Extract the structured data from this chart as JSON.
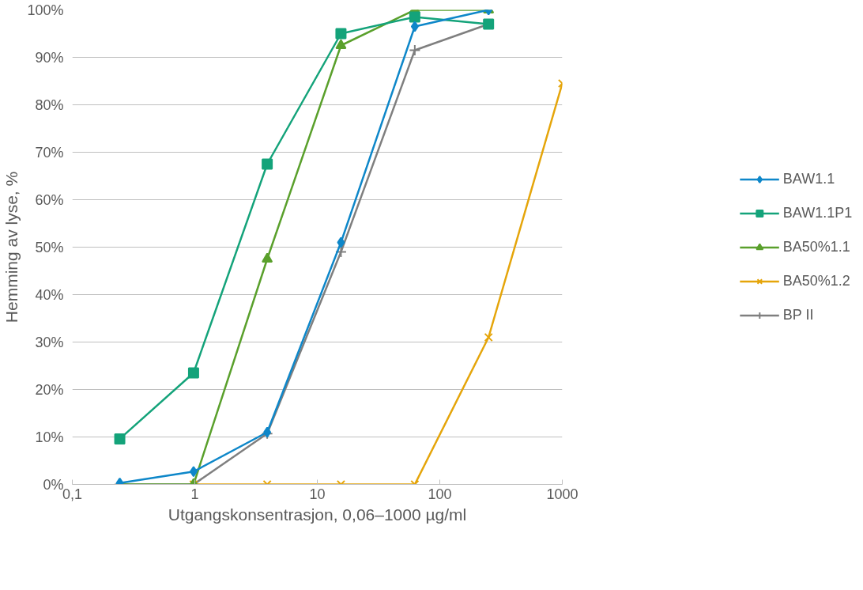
{
  "chart_data": {
    "type": "line",
    "xlabel": "Utgangskonsentrasjon, 0,06–1000 µg/ml",
    "ylabel": "Hemming av lyse, %",
    "log": "x",
    "xlim": [
      0.1,
      1000
    ],
    "xticks": [
      {
        "value": 0.1,
        "label": "0,1"
      },
      1,
      10,
      100,
      1000
    ],
    "ylim": [
      0,
      100
    ],
    "yticks": [
      {
        "value": 0,
        "label": "0%"
      },
      {
        "value": 10,
        "label": "10%"
      },
      {
        "value": 20,
        "label": "20%"
      },
      {
        "value": 30,
        "label": "30%"
      },
      {
        "value": 40,
        "label": "40%"
      },
      {
        "value": 50,
        "label": "50%"
      },
      {
        "value": 60,
        "label": "60%"
      },
      {
        "value": 70,
        "label": "70%"
      },
      {
        "value": 80,
        "label": "80%"
      },
      {
        "value": 90,
        "label": "90%"
      },
      {
        "value": 100,
        "label": "100%"
      }
    ],
    "grid": "y",
    "legend": "right",
    "series": [
      {
        "name": "BAW1.1",
        "color": "#0e87c9",
        "marker": "diamond",
        "x": [
          0.244,
          0.977,
          3.9,
          15.6,
          62.5,
          250
        ],
        "values": [
          0.3,
          2.7,
          11,
          51,
          96.5,
          100
        ]
      },
      {
        "name": "BAW1.1P1",
        "color": "#14a37a",
        "marker": "square",
        "x": [
          0.244,
          0.977,
          3.9,
          15.6,
          62.5,
          250
        ],
        "values": [
          9.6,
          23.5,
          67.5,
          95,
          98.5,
          97
        ]
      },
      {
        "name": "BA50%1.1",
        "color": "#5aa02c",
        "marker": "triangle",
        "x": [
          0.244,
          0.977,
          3.9,
          15.6,
          62.5,
          250
        ],
        "values": [
          0,
          0,
          47.5,
          92.5,
          100,
          100
        ]
      },
      {
        "name": "BA50%1.2",
        "color": "#e5a50a",
        "marker": "cross",
        "x": [
          0.977,
          3.9,
          15.6,
          62.5,
          250,
          1000
        ],
        "values": [
          0,
          0,
          0,
          0,
          31,
          84.5
        ]
      },
      {
        "name": "BP II",
        "color": "#7f7f7f",
        "marker": "plus",
        "x": [
          0.244,
          0.977,
          3.9,
          15.6,
          62.5,
          250
        ],
        "values": [
          0,
          0,
          10.7,
          49,
          91.5,
          97
        ]
      }
    ]
  }
}
